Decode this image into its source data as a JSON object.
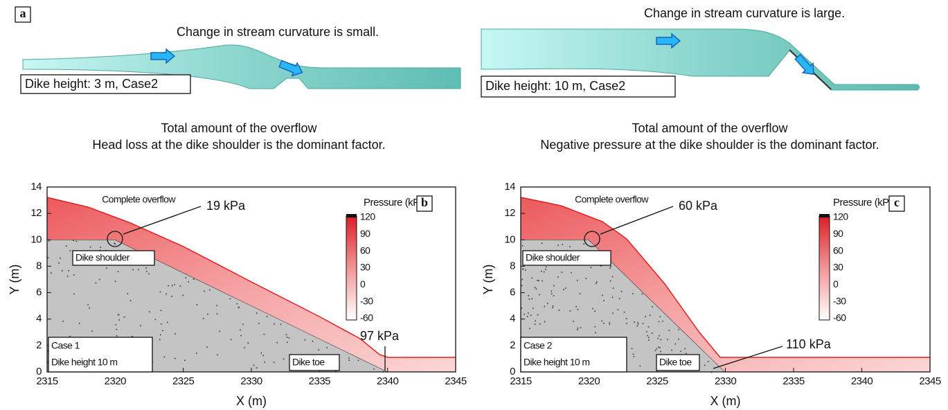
{
  "panel_a": {
    "label": "a",
    "left": {
      "heading": "Change in stream curvature is small.",
      "box": "Dike height: 3 m, Case2",
      "caption": [
        "Total amount of the overflow",
        "Head loss at the dike shoulder is the dominant factor."
      ]
    },
    "right": {
      "heading": "Change in stream curvature is large.",
      "box": "Dike height: 10 m, Case2",
      "caption": [
        "Total amount of the overflow",
        "Negative pressure at the dike shoulder is the dominant factor."
      ]
    }
  },
  "panels": [
    {
      "label": "b",
      "x_label": "X (m)",
      "y_label": "Y (m)",
      "xlim": [
        2315,
        2345
      ],
      "ylim": [
        0,
        14
      ],
      "xticks": [
        2315,
        2320,
        2325,
        2330,
        2335,
        2340,
        2345
      ],
      "yticks": [
        0,
        2,
        4,
        6,
        8,
        10,
        12,
        14
      ],
      "colorbar_title": "Pressure (kPa)",
      "colorbar_ticks": [
        120,
        90,
        60,
        30,
        0,
        -30,
        -60
      ],
      "overflow": "Complete overflow",
      "shoulder_pressure": "19 kPa",
      "shoulder": "Dike shoulder",
      "case": [
        "Case 1",
        "Dike height 10 m"
      ],
      "toe": "Dike toe",
      "toe_pressure": "97 kPa"
    },
    {
      "label": "c",
      "x_label": "X (m)",
      "y_label": "Y (m)",
      "xlim": [
        2315,
        2345
      ],
      "ylim": [
        0,
        14
      ],
      "xticks": [
        2315,
        2320,
        2325,
        2330,
        2335,
        2340,
        2345
      ],
      "yticks": [
        0,
        2,
        4,
        6,
        8,
        10,
        12,
        14
      ],
      "colorbar_title": "Pressure (kPa)",
      "colorbar_ticks": [
        120,
        90,
        60,
        30,
        0,
        -30,
        -60
      ],
      "overflow": "Complete overflow",
      "shoulder_pressure": "60 kPa",
      "shoulder": "Dike shoulder",
      "case": [
        "Case 2",
        "Dike height 10 m"
      ],
      "toe": "Dike toe",
      "toe_pressure": "110 kPa"
    }
  ]
}
